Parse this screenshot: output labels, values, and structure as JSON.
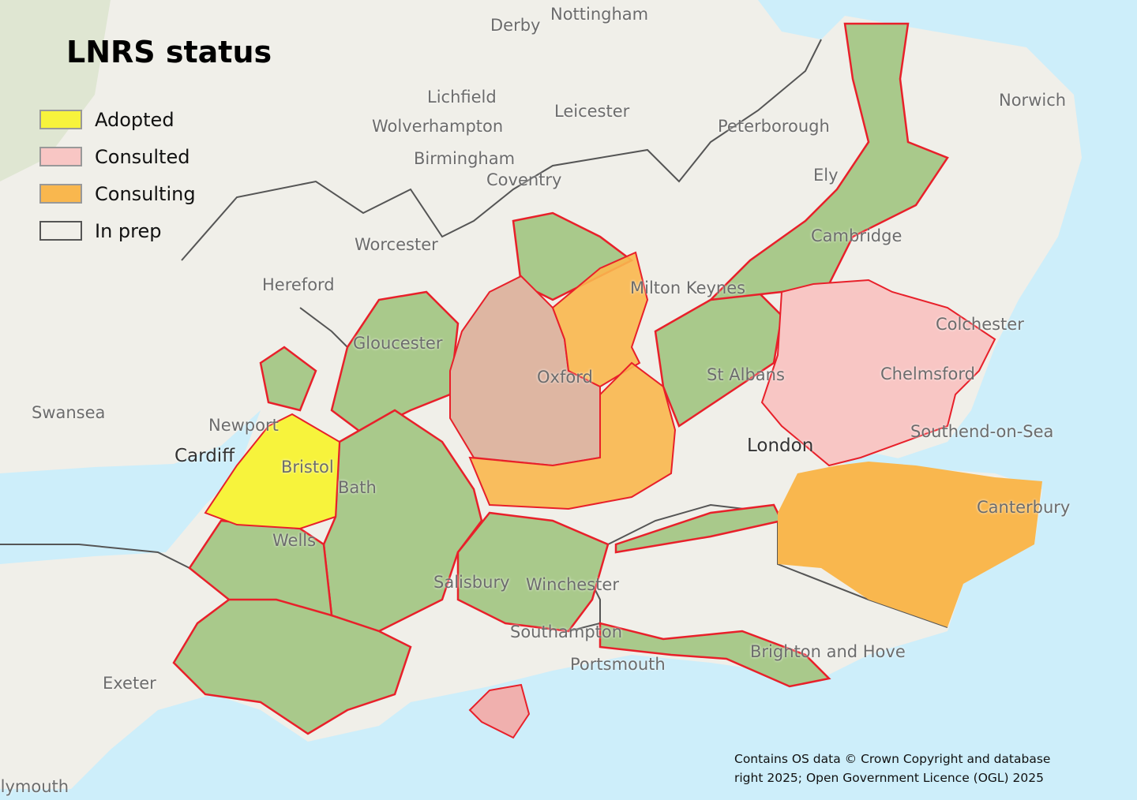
{
  "title": "LNRS status",
  "legend": [
    {
      "label": "Adopted",
      "color": "#f7f33c"
    },
    {
      "label": "Consulted",
      "color": "#f8c6c4"
    },
    {
      "label": "Consulting",
      "color": "#f9b74e"
    },
    {
      "label": "In prep",
      "color": "#f0efe9"
    }
  ],
  "colors": {
    "sea": "#cdeefa",
    "land": "#f0efe9",
    "green_area": "#a9c98b",
    "area_outline": "#e8202a",
    "boundary": "#555555"
  },
  "places": [
    "Derby",
    "Nottingham",
    "Lichfield",
    "Leicester",
    "Norwich",
    "Wolverhampton",
    "Peterborough",
    "Birmingham",
    "Coventry",
    "Ely",
    "Worcester",
    "Cambridge",
    "Hereford",
    "Milton Keynes",
    "Colchester",
    "Gloucester",
    "Oxford",
    "Chelmsford",
    "St Albans",
    "Swansea",
    "Newport",
    "Southend-on-Sea",
    "Cardiff",
    "Bristol",
    "London",
    "Bath",
    "Canterbury",
    "Wells",
    "Salisbury",
    "Winchester",
    "Southampton",
    "Brighton and Hove",
    "Portsmouth",
    "Exeter",
    "Plymouth"
  ],
  "attribution": {
    "line1": "Contains OS data © Crown Copyright and database",
    "line2": "right 2025; Open Government Licence (OGL) 2025"
  }
}
